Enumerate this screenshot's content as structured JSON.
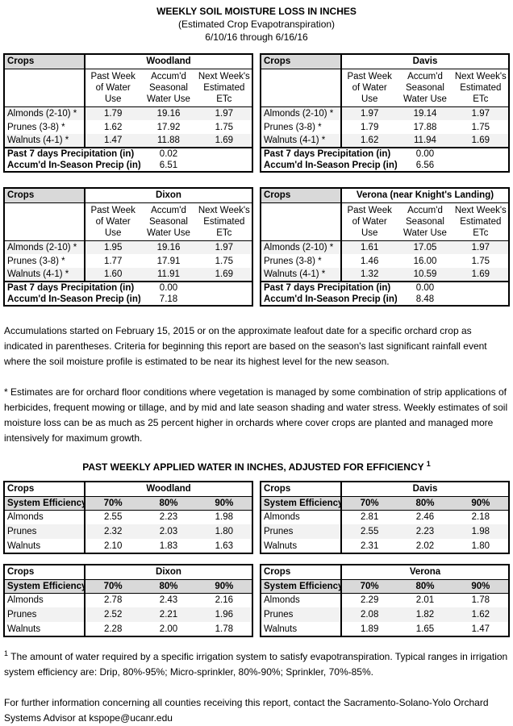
{
  "header": {
    "title": "WEEKLY SOIL MOISTURE LOSS IN INCHES",
    "subtitle": "(Estimated Crop Evapotranspiration)",
    "date_range": "6/10/16 through 6/16/16"
  },
  "moisture_section": {
    "corner_label": "Crops",
    "col_headers": [
      "Past Week\nof Water\nUse",
      "Accum'd\nSeasonal\nWater Use",
      "Next Week's\nEstimated\nETc"
    ],
    "crop_labels": [
      "Almonds (2-10) *",
      "Prunes (3-8) *",
      "Walnuts (4-1) *"
    ],
    "past7_label": "Past 7 days Precipitation (in)",
    "accum_label": "Accum'd In-Season Precip (in)",
    "tables": [
      {
        "location": "Woodland",
        "rows": [
          [
            "1.79",
            "19.16",
            "1.97"
          ],
          [
            "1.62",
            "17.92",
            "1.75"
          ],
          [
            "1.47",
            "11.88",
            "1.69"
          ]
        ],
        "past7": "0.02",
        "accum": "6.51"
      },
      {
        "location": "Davis",
        "rows": [
          [
            "1.97",
            "19.14",
            "1.97"
          ],
          [
            "1.79",
            "17.88",
            "1.75"
          ],
          [
            "1.62",
            "11.94",
            "1.69"
          ]
        ],
        "past7": "0.00",
        "accum": "6.56"
      },
      {
        "location": "Dixon",
        "rows": [
          [
            "1.95",
            "19.16",
            "1.97"
          ],
          [
            "1.77",
            "17.91",
            "1.75"
          ],
          [
            "1.60",
            "11.91",
            "1.69"
          ]
        ],
        "past7": "0.00",
        "accum": "7.18"
      },
      {
        "location": "Verona (near Knight's Landing)",
        "rows": [
          [
            "1.61",
            "17.05",
            "1.97"
          ],
          [
            "1.46",
            "16.00",
            "1.75"
          ],
          [
            "1.32",
            "10.59",
            "1.69"
          ]
        ],
        "past7": "0.00",
        "accum": "8.48"
      }
    ]
  },
  "notes": {
    "accumulations": "Accumulations started on February 15, 2015 or on the approximate leafout date for a specific orchard crop as indicated in parentheses.  Criteria for beginning this report are based on the season's last significant rainfall event where the soil moisture profile is estimated to be near its highest level for the new season.",
    "estimates": "* Estimates are for orchard floor conditions where vegetation is managed by some combination of strip applications of herbicides, frequent mowing or tillage, and by mid and late season shading and water stress. Weekly estimates of soil moisture loss can be as much as 25 percent higher in orchards where cover crops are planted and managed more intensively for maximum growth."
  },
  "efficiency_section": {
    "title": "PAST WEEKLY APPLIED WATER IN INCHES, ADJUSTED FOR EFFICIENCY",
    "title_superscript": "1",
    "corner_label": "Crops",
    "row_header_label": "System Efficiency:",
    "efficiency_levels": [
      "70%",
      "80%",
      "90%"
    ],
    "crop_labels": [
      "Almonds",
      "Prunes",
      "Walnuts"
    ],
    "tables": [
      {
        "location": "Woodland",
        "rows": [
          [
            "2.55",
            "2.23",
            "1.98"
          ],
          [
            "2.32",
            "2.03",
            "1.80"
          ],
          [
            "2.10",
            "1.83",
            "1.63"
          ]
        ]
      },
      {
        "location": "Davis",
        "rows": [
          [
            "2.81",
            "2.46",
            "2.18"
          ],
          [
            "2.55",
            "2.23",
            "1.98"
          ],
          [
            "2.31",
            "2.02",
            "1.80"
          ]
        ]
      },
      {
        "location": "Dixon",
        "rows": [
          [
            "2.78",
            "2.43",
            "2.16"
          ],
          [
            "2.52",
            "2.21",
            "1.96"
          ],
          [
            "2.28",
            "2.00",
            "1.78"
          ]
        ]
      },
      {
        "location": "Verona",
        "rows": [
          [
            "2.29",
            "2.01",
            "1.78"
          ],
          [
            "2.08",
            "1.82",
            "1.62"
          ],
          [
            "1.89",
            "1.65",
            "1.47"
          ]
        ]
      }
    ]
  },
  "footnotes": {
    "superscript": "1",
    "efficiency_note": " The amount of water required by a specific irrigation system to satisfy evapotranspiration. Typical ranges in irrigation system efficiency are: Drip, 80%-95%; Micro-sprinkler, 80%-90%; Sprinkler, 70%-85%.",
    "contact_note": "For further information concerning all counties receiving this report, contact the Sacramento-Solano-Yolo Orchard Systems Advisor at kspope@ucanr.edu"
  },
  "colors": {
    "header_gray": "#d9d9d9",
    "band_gray": "#f2f2f2",
    "border": "#000000"
  }
}
